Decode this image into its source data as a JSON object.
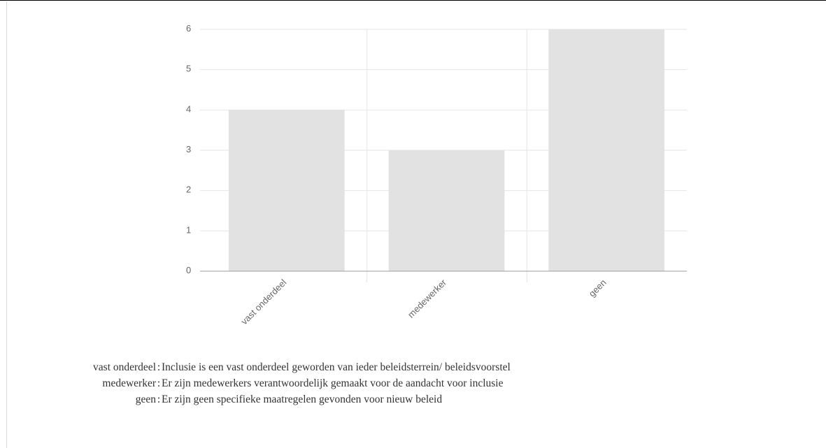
{
  "colors": {
    "bar": "#e2e2e2",
    "grid": "#e6e6e6",
    "axis": "#9e9e9e",
    "text": "#666666"
  },
  "chart_data": {
    "type": "bar",
    "categories": [
      "vast onderdeel",
      "medewerker",
      "geen"
    ],
    "values": [
      4,
      3,
      6
    ],
    "ylim": [
      0,
      6
    ],
    "yticks": [
      "0",
      "1",
      "2",
      "3",
      "4",
      "5",
      "6"
    ],
    "grid": true,
    "xlabel_rotation_deg": -45
  },
  "legend": [
    {
      "key": "vast onderdeel",
      "sep": ":",
      "desc": "Inclusie is een vast onderdeel geworden van ieder beleidsterrein/ beleidsvoorstel"
    },
    {
      "key": "medewerker",
      "sep": ":",
      "desc": "Er zijn medewerkers verantwoordelijk gemaakt voor de aandacht voor inclusie"
    },
    {
      "key": "geen",
      "sep": ":",
      "desc": "Er zijn geen specifieke maatregelen gevonden voor nieuw beleid"
    }
  ]
}
